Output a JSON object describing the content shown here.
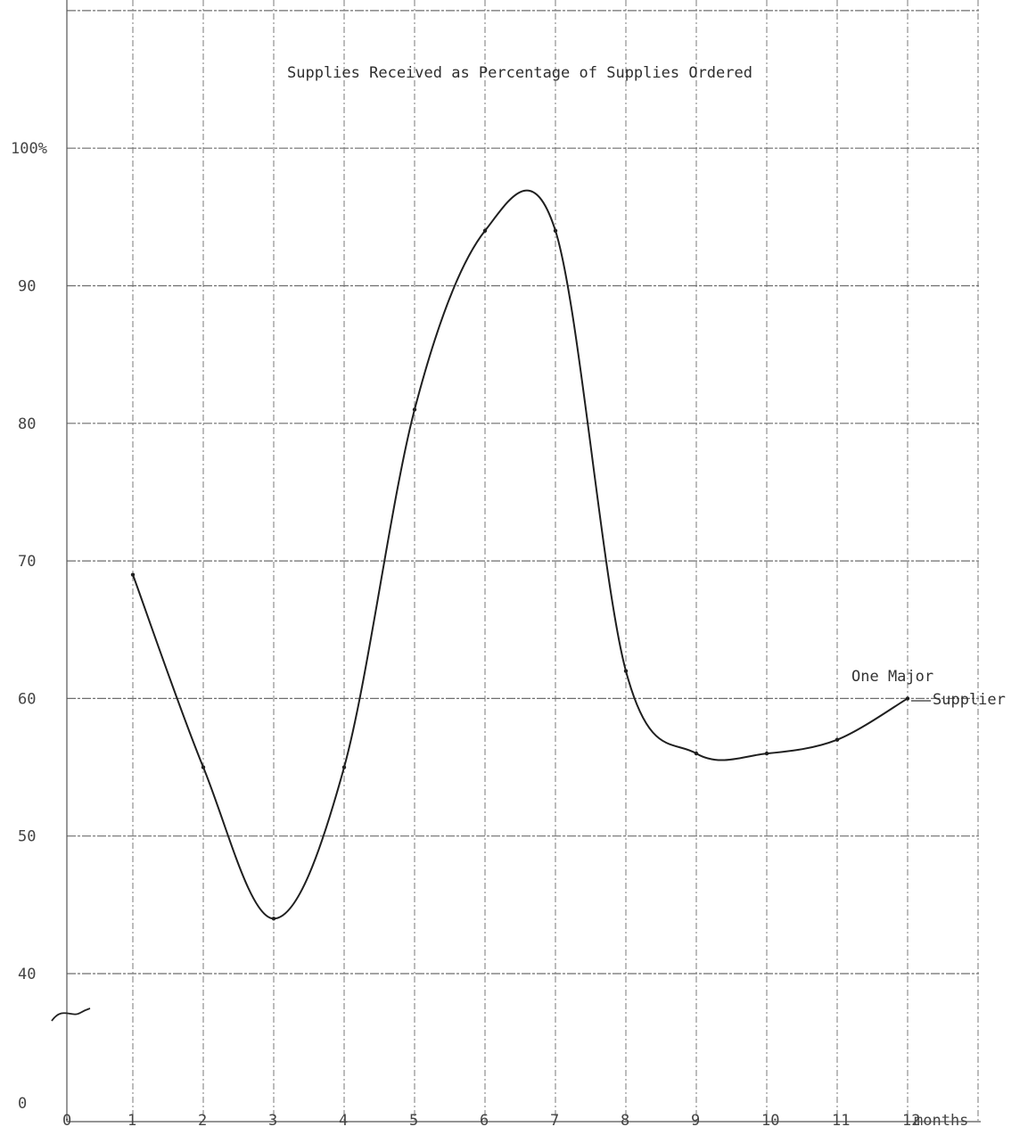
{
  "chart_data": {
    "type": "line",
    "title": "Supplies Received as Percentage of Supplies Ordered",
    "xlabel": "months",
    "ylabel": "",
    "x_ticks": [
      "0",
      "1",
      "2",
      "3",
      "4",
      "5",
      "6",
      "7",
      "8",
      "9",
      "10",
      "11",
      "12"
    ],
    "y_ticks": [
      "0",
      "40",
      "50",
      "60",
      "70",
      "80",
      "90",
      "100%"
    ],
    "xlim": [
      0,
      12
    ],
    "y_axis_break": "between 0 and 40",
    "grid": true,
    "series": [
      {
        "label_line1": "One Major",
        "label_line2": "Supplier",
        "x": [
          1,
          2,
          3,
          4,
          5,
          6,
          7,
          8,
          9,
          10,
          11,
          12
        ],
        "y": [
          69,
          55,
          44,
          55,
          81,
          94,
          94,
          62,
          56,
          56,
          57,
          60
        ]
      }
    ]
  }
}
